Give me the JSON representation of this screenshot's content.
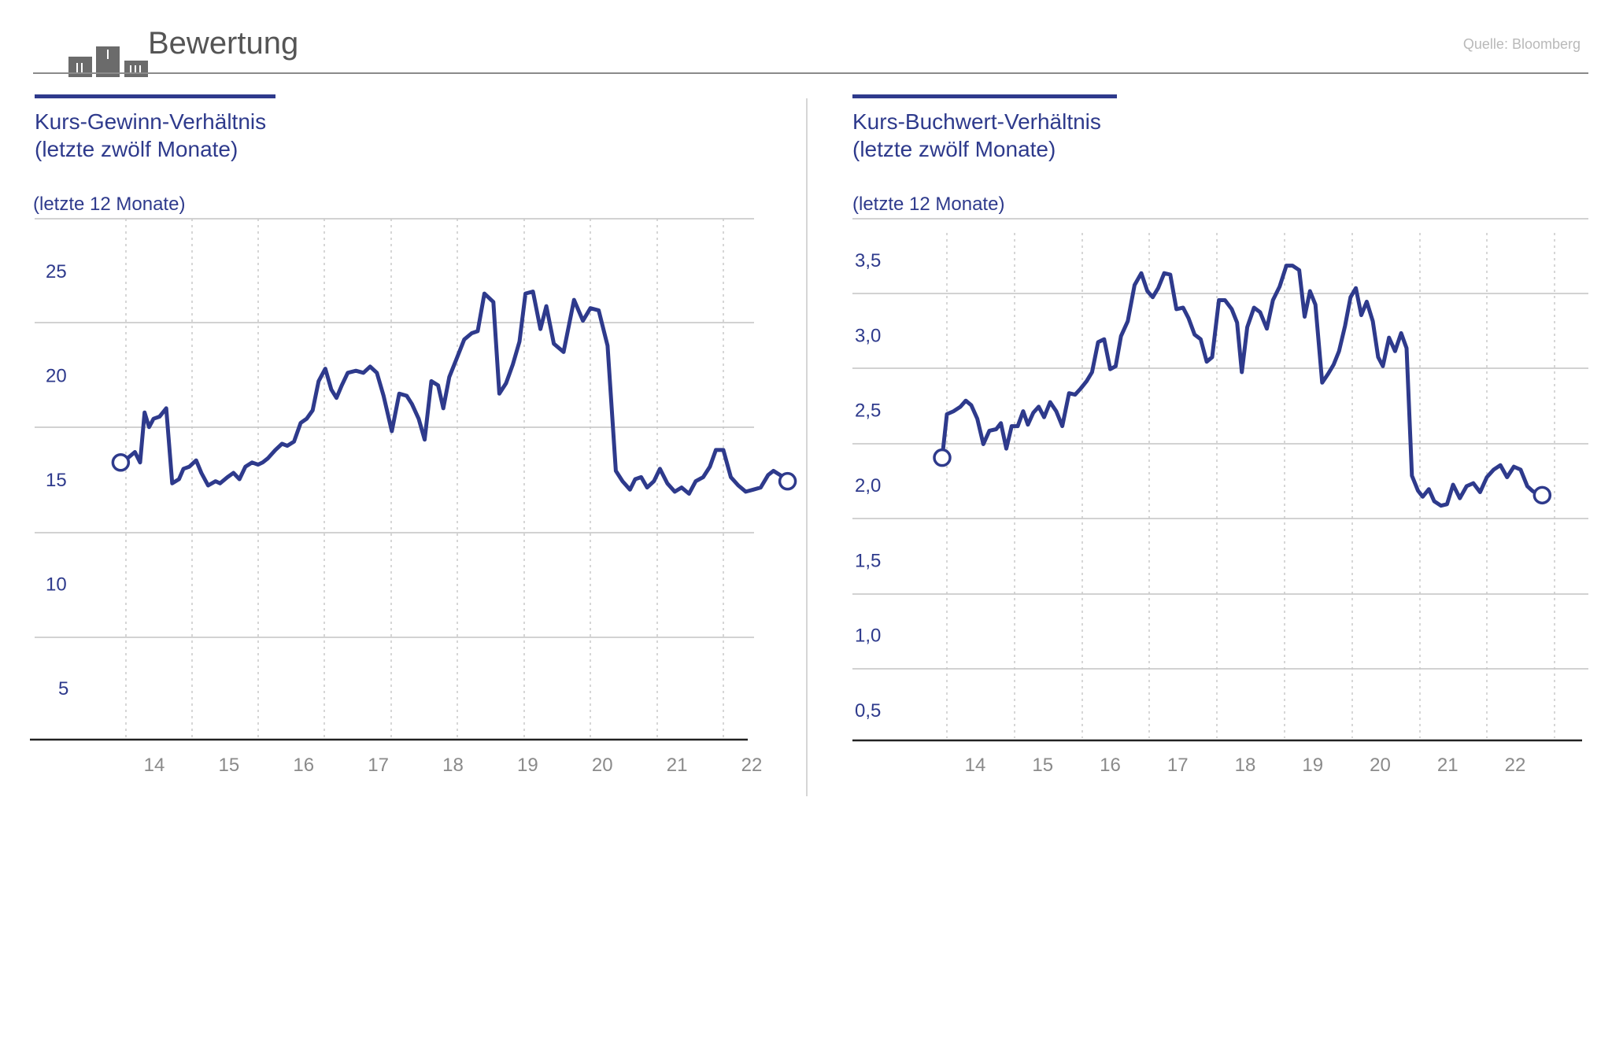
{
  "header": {
    "title": "Bewertung",
    "source": "Quelle: Bloomberg",
    "icon": "bar-chart-logo-icon"
  },
  "colors": {
    "accent": "#2e3a8c",
    "grid": "#c4c4c4",
    "icon_gray": "#6b6b6b",
    "source_gray": "#b9b9b9"
  },
  "charts": [
    {
      "title_line1": "Kurs-Gewinn-Verhältnis",
      "title_line2": "(letzte zwölf Monate)",
      "unit": "(letzte 12 Monate)"
    },
    {
      "title_line1": "Kurs-Buchwert-Verhältnis",
      "title_line2": "(letzte zwölf Monate)",
      "unit": "(letzte 12 Monate)"
    }
  ],
  "chart_data": [
    {
      "type": "line",
      "title": "Kurs-Gewinn-Verhältnis (letzte zwölf Monate)",
      "ylabel": "(letzte 12 Monate)",
      "xlabel": "",
      "ylim": [
        0,
        27.5
      ],
      "xlim": [
        2013.0,
        2023.3
      ],
      "grid": true,
      "y_ticks": [
        5,
        10,
        15,
        20,
        25
      ],
      "y_tick_labels": [
        "5",
        "10",
        "15",
        "20",
        "25"
      ],
      "x_ticks": [
        14,
        15,
        16,
        17,
        18,
        19,
        20,
        21,
        22
      ],
      "x_tick_labels": [
        "14",
        "15",
        "16",
        "17",
        "18",
        "19",
        "20",
        "21",
        "22"
      ],
      "series": [
        {
          "x": [
            2013.93,
            2014.02,
            2014.12,
            2014.19,
            2014.25,
            2014.31,
            2014.37,
            2014.45,
            2014.54,
            2014.62,
            2014.71,
            2014.77,
            2014.85,
            2014.94,
            2015.01,
            2015.1,
            2015.2,
            2015.26,
            2015.36,
            2015.44,
            2015.52,
            2015.6,
            2015.69,
            2015.77,
            2015.83,
            2015.9,
            2016.0,
            2016.09,
            2016.16,
            2016.25,
            2016.34,
            2016.42,
            2016.5,
            2016.58,
            2016.67,
            2016.75,
            2016.82,
            2016.89,
            2016.97,
            2017.08,
            2017.18,
            2017.27,
            2017.36,
            2017.45,
            2017.56,
            2017.66,
            2017.76,
            2017.83,
            2017.92,
            2018.0,
            2018.09,
            2018.18,
            2018.25,
            2018.33,
            2018.42,
            2018.53,
            2018.63,
            2018.71,
            2018.8,
            2018.92,
            2019.0,
            2019.09,
            2019.18,
            2019.27,
            2019.35,
            2019.45,
            2019.55,
            2019.63,
            2019.73,
            2019.86,
            2020.0,
            2020.12,
            2020.22,
            2020.33,
            2020.45,
            2020.56,
            2020.65,
            2020.75,
            2020.82,
            2020.9,
            2020.98,
            2021.07,
            2021.15,
            2021.25,
            2021.35,
            2021.44,
            2021.54,
            2021.63,
            2021.73,
            2021.82,
            2021.9,
            2022.0,
            2022.1,
            2022.2,
            2022.3,
            2022.4,
            2022.5,
            2022.6,
            2022.67,
            2022.76,
            2022.86
          ],
          "values": [
            15.8,
            16.0,
            16.3,
            15.8,
            18.2,
            17.5,
            17.9,
            18.0,
            18.4,
            14.8,
            15.0,
            15.5,
            15.6,
            15.9,
            15.3,
            14.7,
            14.9,
            14.8,
            15.1,
            15.3,
            15.0,
            15.6,
            15.8,
            15.7,
            15.8,
            16.0,
            16.4,
            16.7,
            16.6,
            16.8,
            17.7,
            17.9,
            18.3,
            19.7,
            20.3,
            19.3,
            18.9,
            19.5,
            20.1,
            20.2,
            20.1,
            20.4,
            20.1,
            19.0,
            17.3,
            19.1,
            19.0,
            18.6,
            17.9,
            16.9,
            19.7,
            19.5,
            18.4,
            19.9,
            20.7,
            21.7,
            22.0,
            22.1,
            23.9,
            23.5,
            19.1,
            19.6,
            20.5,
            21.6,
            23.9,
            24.0,
            22.2,
            23.3,
            21.5,
            21.1,
            23.6,
            22.6,
            23.2,
            23.1,
            21.4,
            15.4,
            14.9,
            14.5,
            15.0,
            15.1,
            14.6,
            14.9,
            15.5,
            14.8,
            14.4,
            14.6,
            14.3,
            14.9,
            15.1,
            15.6,
            16.4,
            16.4,
            15.1,
            14.7,
            14.4,
            14.5,
            14.6,
            15.2,
            15.4,
            15.2,
            14.9
          ]
        }
      ]
    },
    {
      "type": "line",
      "title": "Kurs-Buchwert-Verhältnis (letzte zwölf Monate)",
      "ylabel": "(letzte 12 Monate)",
      "xlabel": "",
      "ylim": [
        0.25,
        3.55
      ],
      "xlim": [
        2013.0,
        2023.3
      ],
      "grid": true,
      "y_ticks": [
        0.5,
        1.0,
        1.5,
        2.0,
        2.5,
        3.0,
        3.5
      ],
      "y_tick_labels": [
        "0,5",
        "1,0",
        "1,5",
        "2,0",
        "2,5",
        "3,0",
        "3,5"
      ],
      "x_ticks": [
        14,
        15,
        16,
        17,
        18,
        19,
        20,
        21,
        22
      ],
      "x_tick_labels": [
        "14",
        "15",
        "16",
        "17",
        "18",
        "19",
        "20",
        "21",
        "22"
      ],
      "series": [
        {
          "x": [
            2013.93,
            2014.0,
            2014.1,
            2014.2,
            2014.28,
            2014.36,
            2014.45,
            2014.54,
            2014.63,
            2014.73,
            2014.8,
            2014.88,
            2014.96,
            2015.05,
            2015.13,
            2015.2,
            2015.28,
            2015.36,
            2015.44,
            2015.53,
            2015.62,
            2015.71,
            2015.81,
            2015.9,
            2015.98,
            2016.07,
            2016.15,
            2016.24,
            2016.33,
            2016.42,
            2016.5,
            2016.58,
            2016.68,
            2016.78,
            2016.88,
            2016.97,
            2017.05,
            2017.13,
            2017.22,
            2017.31,
            2017.4,
            2017.5,
            2017.58,
            2017.67,
            2017.76,
            2017.85,
            2017.93,
            2018.03,
            2018.12,
            2018.22,
            2018.3,
            2018.37,
            2018.45,
            2018.55,
            2018.64,
            2018.74,
            2018.83,
            2018.93,
            2019.03,
            2019.12,
            2019.22,
            2019.3,
            2019.38,
            2019.46,
            2019.56,
            2019.65,
            2019.73,
            2019.81,
            2019.9,
            2019.98,
            2020.06,
            2020.14,
            2020.22,
            2020.31,
            2020.39,
            2020.46,
            2020.55,
            2020.64,
            2020.73,
            2020.81,
            2020.89,
            2020.98,
            2021.05,
            2021.14,
            2021.22,
            2021.32,
            2021.41,
            2021.5,
            2021.6,
            2021.7,
            2021.8,
            2021.9,
            2022.0,
            2022.1,
            2022.2,
            2022.3,
            2022.4,
            2022.5,
            2022.6,
            2022.67,
            2022.74,
            2022.82
          ],
          "values": [
            2.18,
            2.47,
            2.49,
            2.52,
            2.56,
            2.53,
            2.44,
            2.27,
            2.36,
            2.37,
            2.41,
            2.24,
            2.39,
            2.39,
            2.49,
            2.4,
            2.48,
            2.52,
            2.45,
            2.55,
            2.49,
            2.39,
            2.61,
            2.6,
            2.64,
            2.69,
            2.75,
            2.95,
            2.97,
            2.77,
            2.79,
            2.99,
            3.09,
            3.33,
            3.41,
            3.29,
            3.25,
            3.31,
            3.41,
            3.4,
            3.17,
            3.18,
            3.11,
            3.0,
            2.97,
            2.82,
            2.85,
            3.23,
            3.23,
            3.17,
            3.08,
            2.75,
            3.05,
            3.18,
            3.15,
            3.04,
            3.23,
            3.32,
            3.46,
            3.46,
            3.43,
            3.12,
            3.29,
            3.2,
            2.68,
            2.74,
            2.8,
            2.89,
            3.06,
            3.25,
            3.31,
            3.13,
            3.22,
            3.09,
            2.85,
            2.79,
            2.98,
            2.89,
            3.01,
            2.91,
            2.06,
            1.96,
            1.92,
            1.97,
            1.89,
            1.86,
            1.87,
            2.0,
            1.91,
            1.99,
            2.01,
            1.95,
            2.05,
            2.1,
            2.13,
            2.05,
            2.12,
            2.1,
            1.99,
            1.96,
            1.94,
            1.93
          ]
        }
      ]
    }
  ]
}
